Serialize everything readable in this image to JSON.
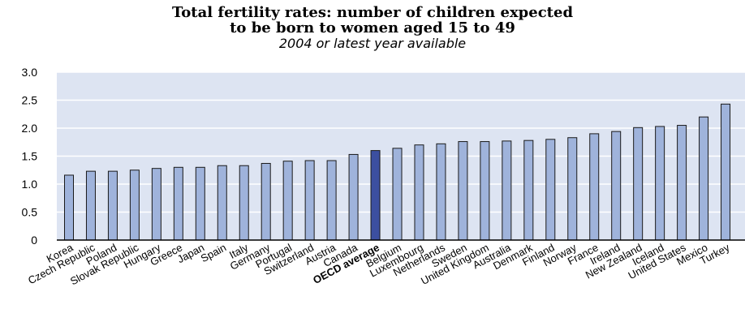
{
  "chart_data": {
    "type": "bar",
    "title": [
      "Total fertility rates: number of children expected",
      "to be born to women aged 15 to 49"
    ],
    "subtitle": "2004 or latest year available",
    "categories": [
      "Korea",
      "Czech Republic",
      "Poland",
      "Slovak Republic",
      "Hungary",
      "Greece",
      "Japan",
      "Spain",
      "Italy",
      "Germany",
      "Portugal",
      "Switzerland",
      "Austria",
      "Canada",
      "OECD average",
      "Belgium",
      "Luxembourg",
      "Netherlands",
      "Sweden",
      "United Kingdom",
      "Australia",
      "Denmark",
      "Finland",
      "Norway",
      "France",
      "Ireland",
      "New Zealand",
      "Iceland",
      "United States",
      "Mexico",
      "Turkey"
    ],
    "values": [
      1.16,
      1.23,
      1.23,
      1.25,
      1.28,
      1.3,
      1.3,
      1.33,
      1.33,
      1.37,
      1.41,
      1.42,
      1.42,
      1.53,
      1.6,
      1.64,
      1.7,
      1.72,
      1.76,
      1.76,
      1.77,
      1.78,
      1.8,
      1.83,
      1.9,
      1.94,
      2.01,
      2.03,
      2.05,
      2.2,
      2.43
    ],
    "highlight": "OECD average",
    "ylim": [
      0,
      3.0
    ],
    "yticks": [
      0,
      0.5,
      1.0,
      1.5,
      2.0,
      2.5,
      3.0
    ],
    "ytick_labels": [
      "0",
      "0.5",
      "1.0",
      "1.5",
      "2.0",
      "2.5",
      "3.0"
    ],
    "grid": true,
    "colors": {
      "bar": "#9fb3db",
      "bar_highlight": "#3c4fa0",
      "bar_edge": "#1a1a1a",
      "plot_bg": "#dde4f2",
      "grid": "#ffffff"
    }
  }
}
